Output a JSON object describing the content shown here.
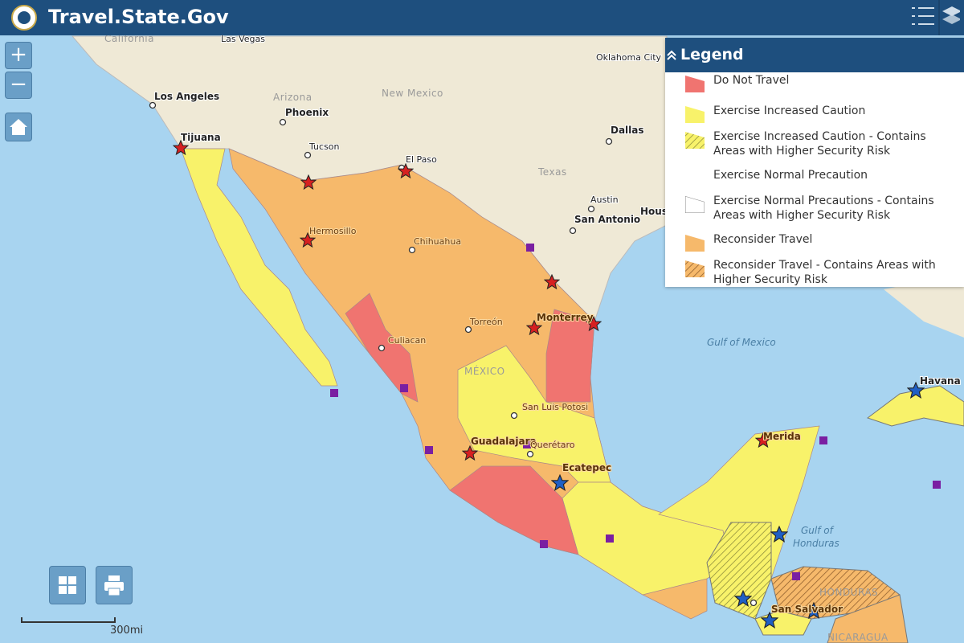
{
  "header": {
    "title": "Travel.State.Gov"
  },
  "controls": {
    "zoom_in": "+",
    "zoom_out": "−"
  },
  "legend": {
    "title": "Legend",
    "items": [
      "Do Not Travel",
      "Exercise Increased Caution",
      "Exercise Increased Caution - Contains Areas with Higher Security Risk",
      "Exercise Normal Precaution",
      "Exercise Normal Precautions - Contains Areas with Higher Security Risk",
      "Reconsider Travel",
      "Reconsider Travel - Contains Areas with Higher Security Risk"
    ]
  },
  "map": {
    "labels": [
      "California",
      "Las Vegas",
      "Oklahoma City",
      "Los Angeles",
      "Arizona",
      "New Mexico",
      "Phoenix",
      "Dallas",
      "Tucson",
      "Tijuana",
      "El Paso",
      "Texas",
      "Austin",
      "San Antonio",
      "Hous",
      "Hermosillo",
      "Chihuahua",
      "Monterrey",
      "Torreón",
      "Culiacan",
      "MÉXICO",
      "San Luis Potosi",
      "Guadalajara",
      "Querétaro",
      "Ecatepec",
      "Gulf of Mexico",
      "Havana",
      "Merida",
      "Gulf of",
      "Honduras",
      "HONDURAS",
      "San Salvador",
      "NICARAGUA"
    ]
  },
  "scale": "300mi"
}
